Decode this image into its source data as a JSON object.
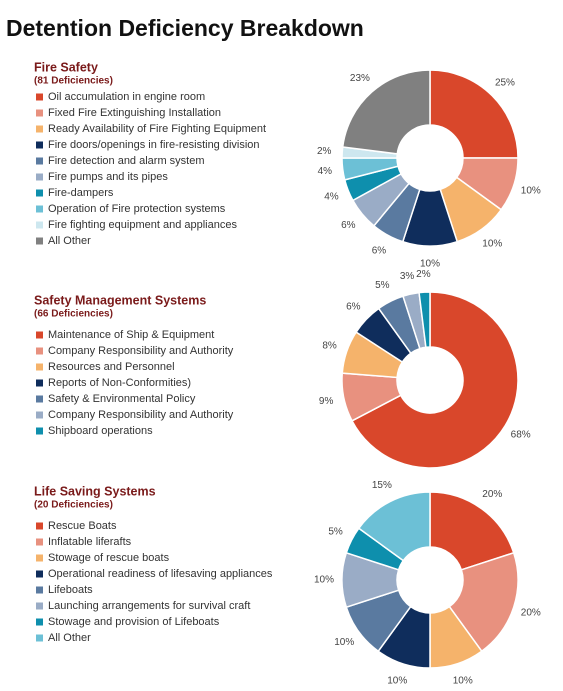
{
  "title": "Detention Deficiency Breakdown",
  "chart_data": [
    {
      "type": "donut",
      "title": "Fire Safety",
      "subtitle": "(81 Deficiencies)",
      "categories": [
        "Oil accumulation in engine room",
        "Fixed Fire Extinguishing Installation",
        "Ready Availability of Fire Fighting Equipment",
        "Fire doors/openings in fire-resisting division",
        "Fire detection and alarm system",
        "Fire pumps and its pipes",
        "Fire-dampers",
        "Operation of Fire protection systems",
        "Fire fighting equipment and appliances",
        "All Other"
      ],
      "values": [
        25,
        10,
        10,
        10,
        6,
        6,
        4,
        4,
        2,
        23
      ],
      "value_labels": [
        "25%",
        "10%",
        "10%",
        "10%",
        "6%",
        "6%",
        "4%",
        "4%",
        "2%",
        "23%"
      ],
      "colors": [
        "#d9472b",
        "#e8917f",
        "#f5b36b",
        "#0f2d5c",
        "#5a7aa0",
        "#9aacc6",
        "#0e8fad",
        "#6cc0d6",
        "#cde7ef",
        "#808080"
      ]
    },
    {
      "type": "donut",
      "title": "Safety Management Systems",
      "subtitle": "(66 Deficiencies)",
      "categories": [
        "Maintenance of Ship & Equipment",
        "Company Responsibility and Authority",
        "Resources and Personnel",
        "Reports of Non-Conformities)",
        "Safety & Environmental Policy",
        "Company Responsibility and Authority",
        "Shipboard operations"
      ],
      "values": [
        68,
        9,
        8,
        6,
        5,
        3,
        2
      ],
      "value_labels": [
        "68%",
        "9%",
        "8%",
        "6%",
        "5%",
        "3%",
        "2%"
      ],
      "colors": [
        "#d9472b",
        "#e8917f",
        "#f5b36b",
        "#0f2d5c",
        "#5a7aa0",
        "#9aacc6",
        "#0e8fad"
      ]
    },
    {
      "type": "donut",
      "title": "Life Saving Systems",
      "subtitle": "(20 Deficiencies)",
      "categories": [
        "Rescue Boats",
        "Inflatable liferafts",
        "Stowage of rescue boats",
        "Operational readiness of lifesaving appliances",
        "Lifeboats",
        "Launching  arrangements for survival craft",
        "Stowage and provision of Lifeboats",
        "All Other"
      ],
      "values": [
        20,
        20,
        10,
        10,
        10,
        10,
        5,
        15
      ],
      "value_labels": [
        "20%",
        "20%",
        "10%",
        "10%",
        "10%",
        "10%",
        "5%",
        "15%"
      ],
      "colors": [
        "#d9472b",
        "#e8917f",
        "#f5b36b",
        "#0f2d5c",
        "#5a7aa0",
        "#9aacc6",
        "#0e8fad",
        "#6cc0d6"
      ]
    }
  ]
}
